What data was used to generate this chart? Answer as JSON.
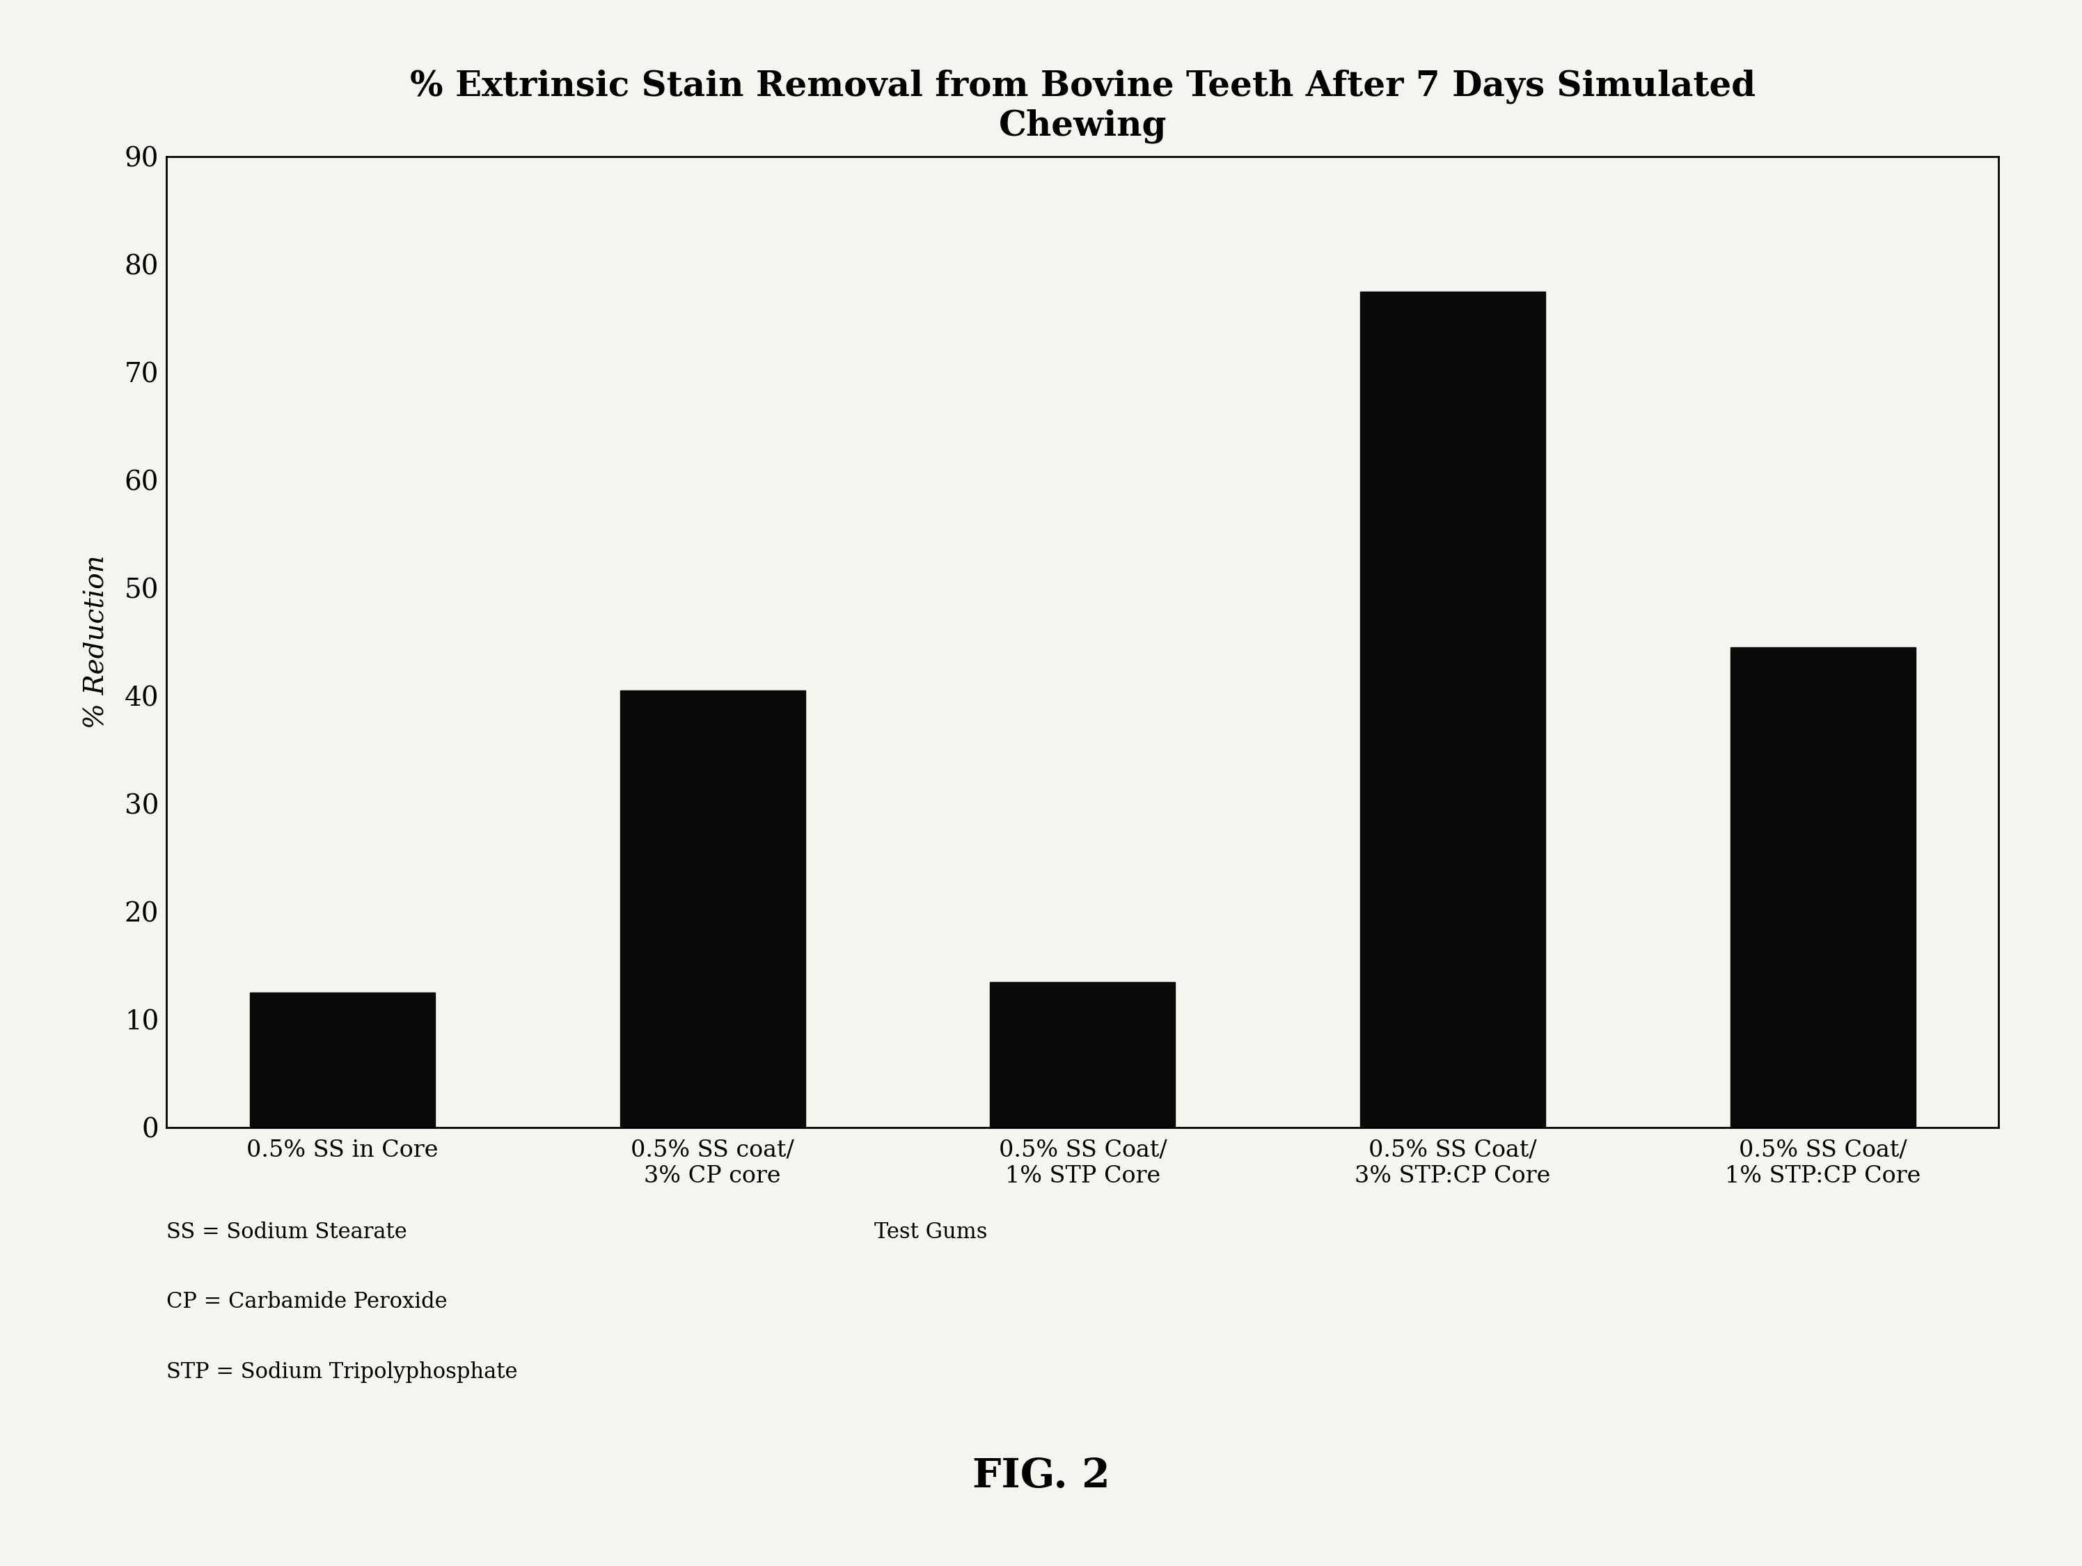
{
  "title_line1": "% Extrinsic Stain Removal from Bovine Teeth After 7 Days Simulated",
  "title_line2": "Chewing",
  "ylabel": "% Reduction",
  "ylim": [
    0,
    90
  ],
  "yticks": [
    0,
    10,
    20,
    30,
    40,
    50,
    60,
    70,
    80,
    90
  ],
  "categories": [
    "0.5% SS in Core",
    "0.5% SS coat/\n3% CP core",
    "0.5% SS Coat/\n1% STP Core",
    "0.5% SS Coat/\n3% STP:CP Core",
    "0.5% SS Coat/\n1% STP:CP Core"
  ],
  "values": [
    12.5,
    40.5,
    13.5,
    77.5,
    44.5
  ],
  "bar_color": "#0a0a0a",
  "bar_width": 0.5,
  "background_color": "#f5f5f0",
  "title_fontsize": 36,
  "axis_label_fontsize": 28,
  "tick_fontsize": 28,
  "xtick_fontsize": 24,
  "footnote_fontsize": 22,
  "fig_label": "FIG. 2",
  "fig_label_fontsize": 42,
  "footnote_lines": [
    "SS = Sodium Stearate",
    "CP = Carbamide Peroxide",
    "STP = Sodium Tripolyphosphate"
  ],
  "footnote_label": "Test Gums",
  "footnote_label_fontsize": 22
}
